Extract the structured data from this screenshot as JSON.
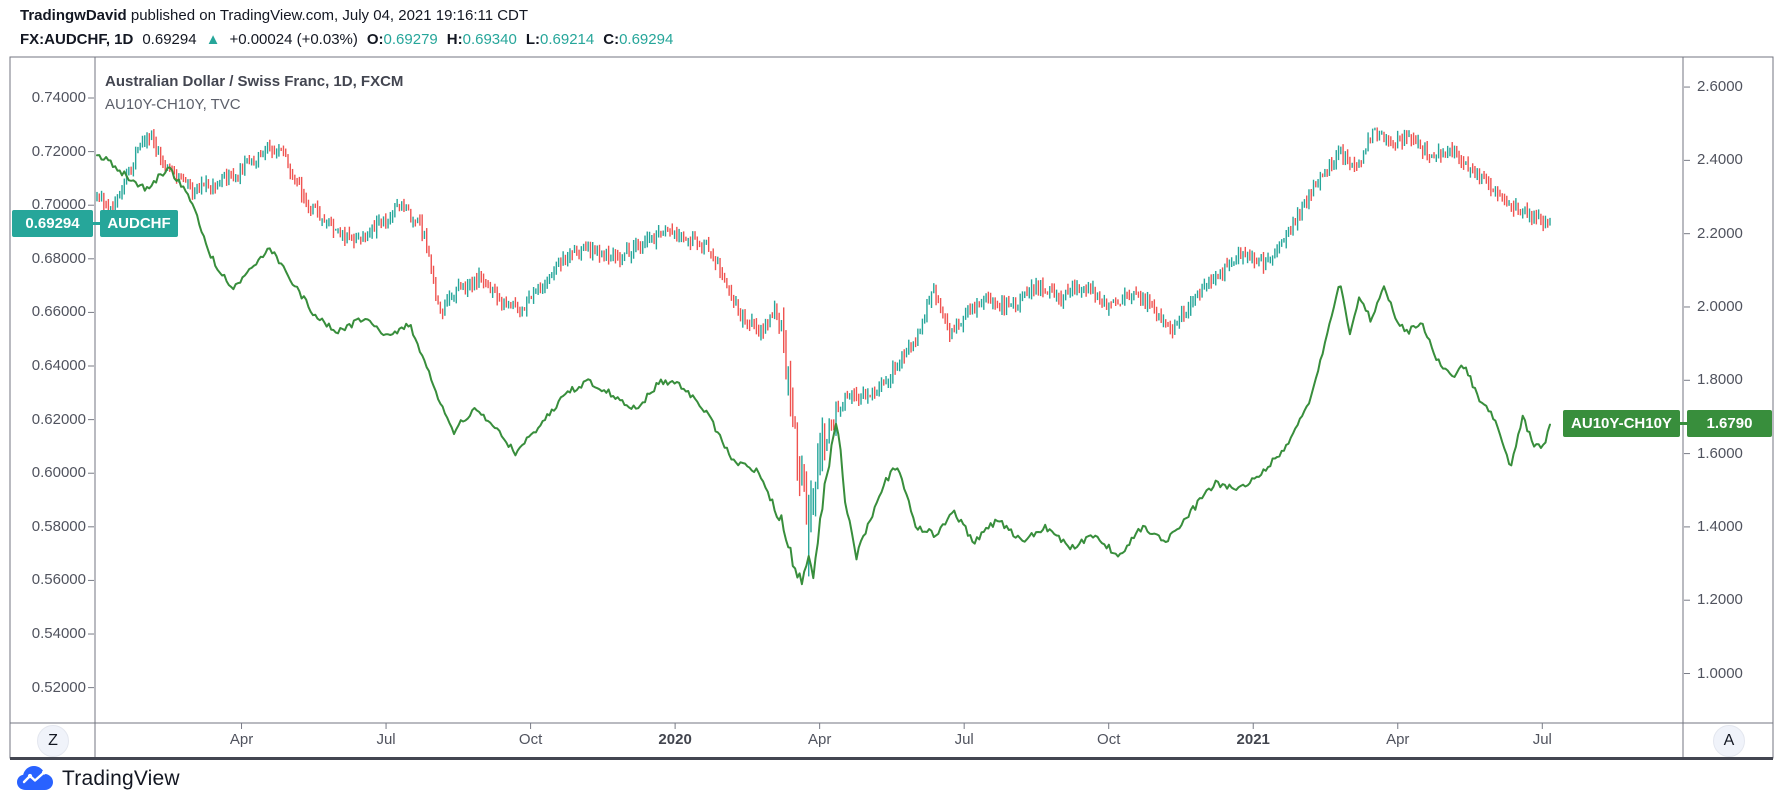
{
  "header": {
    "author": "TradingwDavid",
    "published": " published on TradingView.com, July 04, 2021 19:16:11 CDT",
    "symbol": "FX:AUDCHF, 1D",
    "price": "0.69294",
    "direction_arrow": "▲",
    "change": "+0.00024 (+0.03%)",
    "o_label": "O:",
    "o_value": "0.69279",
    "h_label": "H:",
    "h_value": "0.69340",
    "l_label": "L:",
    "l_value": "0.69214",
    "c_label": "C:",
    "c_value": "0.69294"
  },
  "legend": {
    "title": "Australian Dollar / Swiss Franc, 1D, FXCM",
    "subtitle": "AU10Y-CH10Y, TVC"
  },
  "badges": {
    "left_price": "0.69294",
    "left_symbol": "AUDCHF",
    "right_symbol": "AU10Y-CH10Y",
    "right_price": "1.6790"
  },
  "buttons": {
    "zoom_scale": "Z",
    "auto_scale": "A"
  },
  "footer": {
    "brand": "TradingView"
  },
  "colors": {
    "up": "#26A69A",
    "down": "#EF5350",
    "spread_line": "#388E3C",
    "brand_blue": "#2962FF",
    "axis_text": "#50535E",
    "frame": "#737680",
    "bottom_bar": "#434651"
  },
  "chart_data": {
    "type": "mixed",
    "title": "Australian Dollar / Swiss Franc, 1D, FXCM",
    "subtitle": "AU10Y-CH10Y, TVC",
    "x_unit": "months since 2019-01-01",
    "x_range_months": [
      0,
      30.16
    ],
    "x_ticks": [
      {
        "label": "Apr",
        "m": 3,
        "year": false
      },
      {
        "label": "Jul",
        "m": 6,
        "year": false
      },
      {
        "label": "Oct",
        "m": 9,
        "year": false
      },
      {
        "label": "2020",
        "m": 12,
        "year": true
      },
      {
        "label": "Apr",
        "m": 15,
        "year": false
      },
      {
        "label": "Jul",
        "m": 18,
        "year": false
      },
      {
        "label": "Oct",
        "m": 21,
        "year": false
      },
      {
        "label": "2021",
        "m": 24,
        "year": true
      },
      {
        "label": "Apr",
        "m": 27,
        "year": false
      },
      {
        "label": "Jul",
        "m": 30,
        "year": false
      }
    ],
    "series": [
      {
        "name": "AUDCHF",
        "type": "ohlc_bars",
        "axis": "left",
        "axis_range": [
          0.5068,
          0.7553
        ],
        "tick_labels": [
          "0.74000",
          "0.72000",
          "0.70000",
          "0.68000",
          "0.66000",
          "0.64000",
          "0.62000",
          "0.60000",
          "0.58000",
          "0.56000",
          "0.54000",
          "0.52000"
        ],
        "last_value": 0.69294,
        "crash_low": 0.5615,
        "points": [
          [
            0.0,
            0.705
          ],
          [
            0.35,
            0.698
          ],
          [
            0.8,
            0.718
          ],
          [
            1.05,
            0.727
          ],
          [
            1.5,
            0.712
          ],
          [
            2.0,
            0.706
          ],
          [
            2.5,
            0.709
          ],
          [
            3.0,
            0.713
          ],
          [
            3.55,
            0.7225
          ],
          [
            3.9,
            0.718
          ],
          [
            4.3,
            0.702
          ],
          [
            4.8,
            0.693
          ],
          [
            5.4,
            0.687
          ],
          [
            5.9,
            0.693
          ],
          [
            6.35,
            0.7
          ],
          [
            6.8,
            0.69
          ],
          [
            7.1,
            0.66
          ],
          [
            7.5,
            0.668
          ],
          [
            8.0,
            0.673
          ],
          [
            8.4,
            0.665
          ],
          [
            8.8,
            0.66
          ],
          [
            9.3,
            0.672
          ],
          [
            9.8,
            0.682
          ],
          [
            10.3,
            0.684
          ],
          [
            10.8,
            0.68
          ],
          [
            11.3,
            0.685
          ],
          [
            11.8,
            0.69
          ],
          [
            12.3,
            0.688
          ],
          [
            12.8,
            0.682
          ],
          [
            13.3,
            0.66
          ],
          [
            13.8,
            0.652
          ],
          [
            14.1,
            0.663
          ],
          [
            14.4,
            0.63
          ],
          [
            14.6,
            0.598
          ],
          [
            14.78,
            0.583
          ],
          [
            14.95,
            0.605
          ],
          [
            15.2,
            0.615
          ],
          [
            15.6,
            0.63
          ],
          [
            16.0,
            0.628
          ],
          [
            16.5,
            0.638
          ],
          [
            17.0,
            0.65
          ],
          [
            17.35,
            0.668
          ],
          [
            17.7,
            0.652
          ],
          [
            18.1,
            0.66
          ],
          [
            18.5,
            0.665
          ],
          [
            19.0,
            0.662
          ],
          [
            19.5,
            0.67
          ],
          [
            20.0,
            0.666
          ],
          [
            20.5,
            0.67
          ],
          [
            21.0,
            0.662
          ],
          [
            21.5,
            0.668
          ],
          [
            22.0,
            0.66
          ],
          [
            22.3,
            0.653
          ],
          [
            22.8,
            0.665
          ],
          [
            23.3,
            0.675
          ],
          [
            23.8,
            0.682
          ],
          [
            24.3,
            0.678
          ],
          [
            24.8,
            0.692
          ],
          [
            25.3,
            0.708
          ],
          [
            25.8,
            0.719
          ],
          [
            26.1,
            0.713
          ],
          [
            26.5,
            0.728
          ],
          [
            26.9,
            0.723
          ],
          [
            27.3,
            0.725
          ],
          [
            27.7,
            0.718
          ],
          [
            28.1,
            0.721
          ],
          [
            28.5,
            0.713
          ],
          [
            28.9,
            0.708
          ],
          [
            29.3,
            0.701
          ],
          [
            29.7,
            0.696
          ],
          [
            30.16,
            0.6929
          ]
        ]
      },
      {
        "name": "AU10Y-CH10Y",
        "type": "line",
        "axis": "right",
        "axis_range": [
          0.865,
          2.682
        ],
        "tick_labels": [
          "2.6000",
          "2.4000",
          "2.2000",
          "2.0000",
          "1.8000",
          "1.6000",
          "1.4000",
          "1.2000",
          "1.0000"
        ],
        "last_value": 1.679,
        "points": [
          [
            0.0,
            2.42
          ],
          [
            0.5,
            2.37
          ],
          [
            1.0,
            2.32
          ],
          [
            1.5,
            2.38
          ],
          [
            2.0,
            2.28
          ],
          [
            2.3,
            2.15
          ],
          [
            2.8,
            2.05
          ],
          [
            3.2,
            2.1
          ],
          [
            3.6,
            2.16
          ],
          [
            4.0,
            2.08
          ],
          [
            4.5,
            1.98
          ],
          [
            5.0,
            1.93
          ],
          [
            5.5,
            1.97
          ],
          [
            6.0,
            1.92
          ],
          [
            6.5,
            1.95
          ],
          [
            7.0,
            1.78
          ],
          [
            7.4,
            1.66
          ],
          [
            7.8,
            1.72
          ],
          [
            8.2,
            1.68
          ],
          [
            8.7,
            1.6
          ],
          [
            9.2,
            1.68
          ],
          [
            9.7,
            1.76
          ],
          [
            10.2,
            1.8
          ],
          [
            10.7,
            1.76
          ],
          [
            11.2,
            1.72
          ],
          [
            11.7,
            1.8
          ],
          [
            12.2,
            1.78
          ],
          [
            12.7,
            1.7
          ],
          [
            13.2,
            1.58
          ],
          [
            13.7,
            1.55
          ],
          [
            14.2,
            1.42
          ],
          [
            14.5,
            1.28
          ],
          [
            14.65,
            1.25
          ],
          [
            14.75,
            1.32
          ],
          [
            14.85,
            1.26
          ],
          [
            15.1,
            1.5
          ],
          [
            15.35,
            1.7
          ],
          [
            15.55,
            1.45
          ],
          [
            15.75,
            1.32
          ],
          [
            16.0,
            1.4
          ],
          [
            16.35,
            1.52
          ],
          [
            16.6,
            1.57
          ],
          [
            17.0,
            1.4
          ],
          [
            17.4,
            1.38
          ],
          [
            17.8,
            1.44
          ],
          [
            18.2,
            1.36
          ],
          [
            18.7,
            1.42
          ],
          [
            19.2,
            1.36
          ],
          [
            19.7,
            1.4
          ],
          [
            20.2,
            1.34
          ],
          [
            20.7,
            1.38
          ],
          [
            21.2,
            1.32
          ],
          [
            21.7,
            1.4
          ],
          [
            22.2,
            1.36
          ],
          [
            22.7,
            1.44
          ],
          [
            23.2,
            1.52
          ],
          [
            23.7,
            1.5
          ],
          [
            24.2,
            1.55
          ],
          [
            24.7,
            1.62
          ],
          [
            25.1,
            1.72
          ],
          [
            25.5,
            1.9
          ],
          [
            25.8,
            2.07
          ],
          [
            26.0,
            1.93
          ],
          [
            26.2,
            2.03
          ],
          [
            26.45,
            1.96
          ],
          [
            26.7,
            2.06
          ],
          [
            26.95,
            1.97
          ],
          [
            27.2,
            1.93
          ],
          [
            27.5,
            1.96
          ],
          [
            27.8,
            1.86
          ],
          [
            28.1,
            1.81
          ],
          [
            28.4,
            1.84
          ],
          [
            28.7,
            1.74
          ],
          [
            29.0,
            1.7
          ],
          [
            29.35,
            1.56
          ],
          [
            29.6,
            1.7
          ],
          [
            29.8,
            1.63
          ],
          [
            30.0,
            1.61
          ],
          [
            30.16,
            1.679
          ]
        ]
      }
    ]
  }
}
